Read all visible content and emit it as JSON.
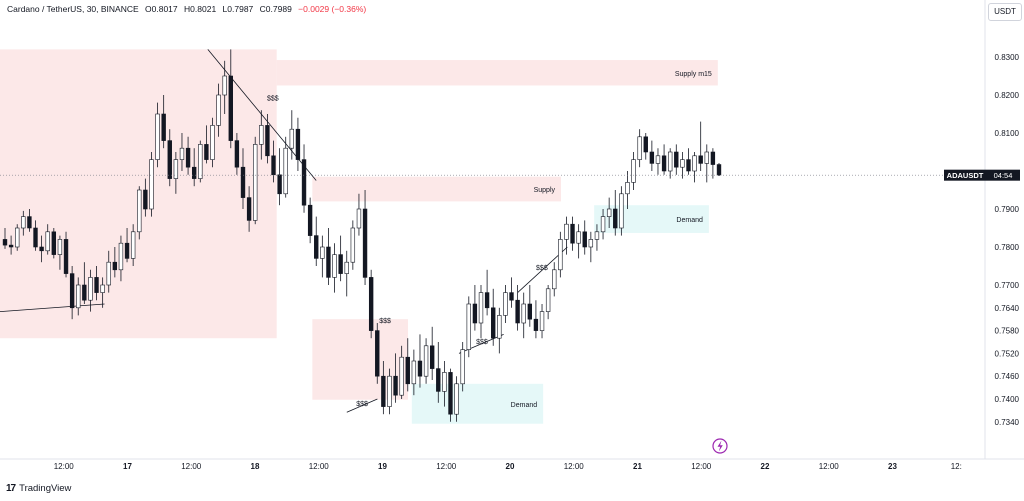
{
  "header": {
    "symbol": "Cardano / TetherUS, 30, BINANCE",
    "open": "O0.8017",
    "high": "H0.8021",
    "low": "L0.7987",
    "close": "C0.7989",
    "change": "−0.0029 (−0.36%)"
  },
  "currency_button": "USDT",
  "logo_text": "TradingView",
  "chart_data": {
    "type": "candlestick",
    "title": "Cardano / TetherUS, 30, BINANCE",
    "ylim": [
      0.73,
      0.84
    ],
    "y_ticks": [
      "0.8300",
      "0.8200",
      "0.8100",
      "0.7900",
      "0.7800",
      "0.7700",
      "0.7640",
      "0.7580",
      "0.7520",
      "0.7460",
      "0.7400",
      "0.7340"
    ],
    "y_tick_values": [
      0.83,
      0.82,
      0.81,
      0.79,
      0.78,
      0.77,
      0.764,
      0.758,
      0.752,
      0.746,
      0.74,
      0.734
    ],
    "x_ticks": [
      "12:00",
      "17",
      "12:00",
      "18",
      "12:00",
      "19",
      "12:00",
      "20",
      "12:00",
      "21",
      "12:00",
      "22",
      "12:00",
      "23",
      "12:"
    ],
    "x_tick_days": [
      16.5,
      17,
      17.5,
      18,
      18.5,
      19,
      19.5,
      20,
      20.5,
      21,
      21.5,
      22,
      22.5,
      23,
      23.5
    ],
    "x_range_days": [
      16.0,
      24.0
    ],
    "last_price_label": "ADAUSDT",
    "countdown": "04:54",
    "last_price": 0.7989,
    "zones": [
      {
        "label": "",
        "color": "#fbe4e4",
        "t0": 16.0,
        "t1": 18.17,
        "p_low": 0.756,
        "p_high": 0.832
      },
      {
        "label": "Supply m15",
        "color": "#fbe4e4",
        "t0": 18.17,
        "t1": 21.63,
        "p_low": 0.8225,
        "p_high": 0.8292
      },
      {
        "label": "Supply",
        "color": "#fbe4e4",
        "t0": 18.45,
        "t1": 20.4,
        "p_low": 0.792,
        "p_high": 0.7985
      },
      {
        "label": "",
        "color": "#fbe4e4",
        "t0": 18.45,
        "t1": 19.2,
        "p_low": 0.7398,
        "p_high": 0.761
      },
      {
        "label": "Demand",
        "color": "#e0f7f7",
        "t0": 20.66,
        "t1": 21.56,
        "p_low": 0.7837,
        "p_high": 0.791
      },
      {
        "label": "Demand",
        "color": "#e0f7f7",
        "t0": 19.23,
        "t1": 20.26,
        "p_low": 0.7335,
        "p_high": 0.744
      }
    ],
    "trendlines": [
      {
        "t0": 16.0,
        "p0": 0.763,
        "t1": 16.82,
        "p1": 0.765
      },
      {
        "t0": 17.63,
        "p0": 0.832,
        "t1": 18.48,
        "p1": 0.7975
      },
      {
        "t0": 18.72,
        "p0": 0.7365,
        "t1": 18.96,
        "p1": 0.74
      },
      {
        "t0": 19.6,
        "p0": 0.752,
        "t1": 19.95,
        "p1": 0.757
      },
      {
        "t0": 20.06,
        "p0": 0.768,
        "t1": 20.45,
        "p1": 0.78
      }
    ],
    "annotations": [
      {
        "text": "$$$",
        "t": 18.14,
        "p": 0.8185
      },
      {
        "text": "$$$",
        "t": 19.02,
        "p": 0.76
      },
      {
        "text": "$$$",
        "t": 18.84,
        "p": 0.7382
      },
      {
        "text": "$$$",
        "t": 19.78,
        "p": 0.7545
      },
      {
        "text": "$$$",
        "t": 20.25,
        "p": 0.774
      }
    ],
    "candles": [
      [
        0.782,
        0.785,
        0.7795,
        0.7805
      ],
      [
        0.7805,
        0.783,
        0.778,
        0.78
      ],
      [
        0.78,
        0.786,
        0.779,
        0.785
      ],
      [
        0.785,
        0.7895,
        0.783,
        0.788
      ],
      [
        0.788,
        0.79,
        0.784,
        0.785
      ],
      [
        0.785,
        0.787,
        0.779,
        0.78
      ],
      [
        0.78,
        0.783,
        0.776,
        0.779
      ],
      [
        0.779,
        0.786,
        0.778,
        0.784
      ],
      [
        0.784,
        0.785,
        0.777,
        0.778
      ],
      [
        0.778,
        0.783,
        0.774,
        0.782
      ],
      [
        0.782,
        0.784,
        0.772,
        0.773
      ],
      [
        0.773,
        0.775,
        0.761,
        0.764
      ],
      [
        0.764,
        0.772,
        0.762,
        0.77
      ],
      [
        0.77,
        0.776,
        0.765,
        0.766
      ],
      [
        0.766,
        0.774,
        0.763,
        0.772
      ],
      [
        0.772,
        0.775,
        0.766,
        0.768
      ],
      [
        0.768,
        0.772,
        0.764,
        0.77
      ],
      [
        0.77,
        0.779,
        0.768,
        0.776
      ],
      [
        0.776,
        0.78,
        0.772,
        0.774
      ],
      [
        0.774,
        0.783,
        0.771,
        0.781
      ],
      [
        0.781,
        0.785,
        0.776,
        0.777
      ],
      [
        0.777,
        0.786,
        0.775,
        0.784
      ],
      [
        0.784,
        0.796,
        0.782,
        0.795
      ],
      [
        0.795,
        0.798,
        0.788,
        0.79
      ],
      [
        0.79,
        0.805,
        0.788,
        0.803
      ],
      [
        0.803,
        0.818,
        0.801,
        0.815
      ],
      [
        0.815,
        0.82,
        0.806,
        0.808
      ],
      [
        0.808,
        0.811,
        0.796,
        0.798
      ],
      [
        0.798,
        0.805,
        0.794,
        0.803
      ],
      [
        0.803,
        0.81,
        0.8,
        0.806
      ],
      [
        0.806,
        0.809,
        0.799,
        0.801
      ],
      [
        0.801,
        0.806,
        0.796,
        0.798
      ],
      [
        0.798,
        0.808,
        0.797,
        0.807
      ],
      [
        0.807,
        0.812,
        0.802,
        0.803
      ],
      [
        0.803,
        0.814,
        0.801,
        0.812
      ],
      [
        0.812,
        0.823,
        0.809,
        0.82
      ],
      [
        0.82,
        0.829,
        0.815,
        0.825
      ],
      [
        0.825,
        0.832,
        0.806,
        0.808
      ],
      [
        0.808,
        0.81,
        0.799,
        0.801
      ],
      [
        0.801,
        0.806,
        0.79,
        0.793
      ],
      [
        0.793,
        0.796,
        0.784,
        0.787
      ],
      [
        0.787,
        0.809,
        0.786,
        0.807
      ],
      [
        0.807,
        0.816,
        0.803,
        0.812
      ],
      [
        0.812,
        0.815,
        0.802,
        0.804
      ],
      [
        0.804,
        0.808,
        0.797,
        0.799
      ],
      [
        0.799,
        0.806,
        0.791,
        0.794
      ],
      [
        0.794,
        0.809,
        0.793,
        0.806
      ],
      [
        0.806,
        0.816,
        0.803,
        0.811
      ],
      [
        0.811,
        0.814,
        0.8,
        0.803
      ],
      [
        0.803,
        0.807,
        0.789,
        0.791
      ],
      [
        0.791,
        0.793,
        0.781,
        0.783
      ],
      [
        0.783,
        0.788,
        0.775,
        0.777
      ],
      [
        0.777,
        0.783,
        0.772,
        0.78
      ],
      [
        0.78,
        0.785,
        0.77,
        0.772
      ],
      [
        0.772,
        0.781,
        0.768,
        0.778
      ],
      [
        0.778,
        0.783,
        0.771,
        0.773
      ],
      [
        0.773,
        0.779,
        0.767,
        0.776
      ],
      [
        0.776,
        0.787,
        0.774,
        0.785
      ],
      [
        0.785,
        0.794,
        0.783,
        0.79
      ],
      [
        0.79,
        0.795,
        0.77,
        0.772
      ],
      [
        0.772,
        0.774,
        0.756,
        0.758
      ],
      [
        0.758,
        0.76,
        0.744,
        0.746
      ],
      [
        0.746,
        0.75,
        0.736,
        0.738
      ],
      [
        0.738,
        0.748,
        0.736,
        0.746
      ],
      [
        0.746,
        0.752,
        0.739,
        0.741
      ],
      [
        0.741,
        0.754,
        0.74,
        0.751
      ],
      [
        0.751,
        0.756,
        0.742,
        0.744
      ],
      [
        0.744,
        0.753,
        0.741,
        0.75
      ],
      [
        0.75,
        0.757,
        0.743,
        0.746
      ],
      [
        0.746,
        0.756,
        0.744,
        0.754
      ],
      [
        0.754,
        0.759,
        0.745,
        0.748
      ],
      [
        0.748,
        0.755,
        0.739,
        0.742
      ],
      [
        0.742,
        0.75,
        0.738,
        0.747
      ],
      [
        0.747,
        0.748,
        0.734,
        0.736
      ],
      [
        0.736,
        0.746,
        0.734,
        0.744
      ],
      [
        0.744,
        0.755,
        0.742,
        0.753
      ],
      [
        0.753,
        0.767,
        0.751,
        0.765
      ],
      [
        0.765,
        0.77,
        0.758,
        0.76
      ],
      [
        0.76,
        0.77,
        0.756,
        0.768
      ],
      [
        0.768,
        0.774,
        0.762,
        0.764
      ],
      [
        0.764,
        0.769,
        0.754,
        0.756
      ],
      [
        0.756,
        0.764,
        0.752,
        0.762
      ],
      [
        0.762,
        0.77,
        0.76,
        0.768
      ],
      [
        0.768,
        0.772,
        0.764,
        0.766
      ],
      [
        0.766,
        0.77,
        0.758,
        0.76
      ],
      [
        0.76,
        0.768,
        0.756,
        0.765
      ],
      [
        0.765,
        0.77,
        0.759,
        0.761
      ],
      [
        0.761,
        0.766,
        0.756,
        0.758
      ],
      [
        0.758,
        0.765,
        0.756,
        0.763
      ],
      [
        0.763,
        0.77,
        0.761,
        0.769
      ],
      [
        0.769,
        0.776,
        0.767,
        0.774
      ],
      [
        0.774,
        0.784,
        0.772,
        0.782
      ],
      [
        0.782,
        0.788,
        0.778,
        0.786
      ],
      [
        0.786,
        0.788,
        0.779,
        0.781
      ],
      [
        0.781,
        0.786,
        0.777,
        0.784
      ],
      [
        0.784,
        0.787,
        0.778,
        0.78
      ],
      [
        0.78,
        0.784,
        0.776,
        0.782
      ],
      [
        0.782,
        0.786,
        0.779,
        0.784
      ],
      [
        0.784,
        0.79,
        0.782,
        0.788
      ],
      [
        0.788,
        0.793,
        0.785,
        0.79
      ],
      [
        0.79,
        0.795,
        0.783,
        0.785
      ],
      [
        0.785,
        0.796,
        0.783,
        0.794
      ],
      [
        0.794,
        0.8,
        0.79,
        0.797
      ],
      [
        0.797,
        0.805,
        0.795,
        0.803
      ],
      [
        0.803,
        0.811,
        0.801,
        0.809
      ],
      [
        0.809,
        0.81,
        0.803,
        0.805
      ],
      [
        0.805,
        0.808,
        0.8,
        0.802
      ],
      [
        0.802,
        0.806,
        0.799,
        0.804
      ],
      [
        0.804,
        0.807,
        0.799,
        0.8
      ],
      [
        0.8,
        0.806,
        0.798,
        0.805
      ],
      [
        0.805,
        0.807,
        0.799,
        0.801
      ],
      [
        0.801,
        0.805,
        0.798,
        0.803
      ],
      [
        0.803,
        0.806,
        0.799,
        0.8
      ],
      [
        0.8,
        0.805,
        0.797,
        0.804
      ],
      [
        0.804,
        0.813,
        0.8,
        0.802
      ],
      [
        0.802,
        0.807,
        0.797,
        0.805
      ],
      [
        0.805,
        0.806,
        0.798,
        0.8017
      ],
      [
        0.8017,
        0.8021,
        0.7987,
        0.7989
      ]
    ]
  }
}
